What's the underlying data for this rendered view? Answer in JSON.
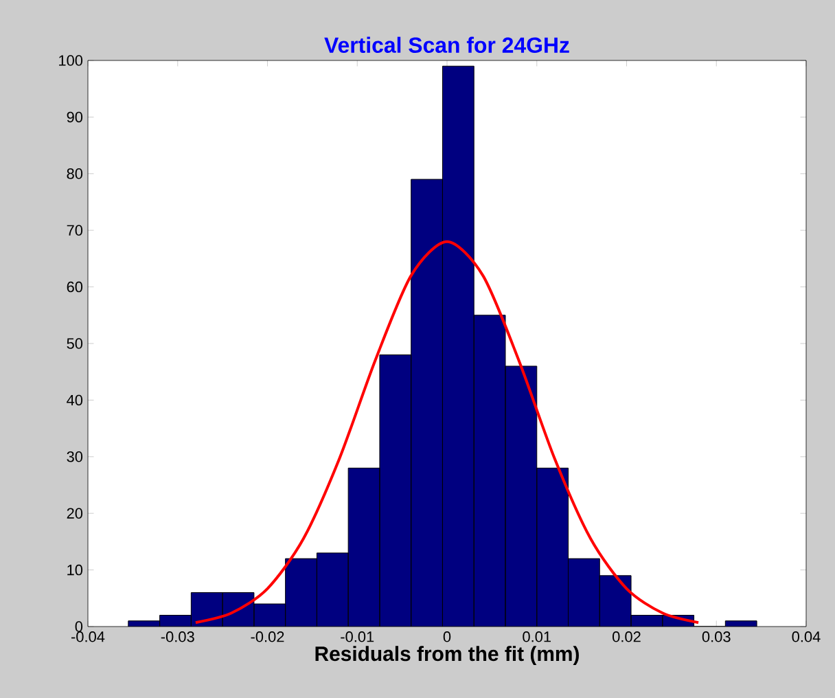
{
  "chart_data": {
    "type": "histogram",
    "title": "Vertical Scan for 24GHz",
    "xlabel": "Residuals from the fit (mm)",
    "bins": [
      -0.0355,
      -0.032,
      -0.0285,
      -0.025,
      -0.0215,
      -0.018,
      -0.0145,
      -0.011,
      -0.0075,
      -0.004,
      -0.0005,
      0.003,
      0.0065,
      0.01,
      0.0135,
      0.017,
      0.0205,
      0.024,
      0.0275,
      0.031,
      0.0345
    ],
    "series": [
      {
        "color": "#000080",
        "values": [
          1,
          2,
          6,
          6,
          4,
          12,
          13,
          28,
          48,
          79,
          99,
          55,
          46,
          28,
          12,
          9,
          2,
          2,
          0,
          1
        ]
      },
      {
        "type": "line",
        "color": "#ff0000",
        "x": [
          -0.028,
          -0.024,
          -0.02,
          -0.016,
          -0.012,
          -0.008,
          -0.004,
          0,
          0.004,
          0.008,
          0.012,
          0.016,
          0.02,
          0.024,
          0.028
        ],
        "values": [
          0.7,
          2.4,
          6.7,
          15.5,
          29.6,
          47,
          62,
          68,
          62,
          47,
          29.6,
          15.5,
          6.7,
          2.4,
          0.7
        ]
      }
    ],
    "xlim": [
      -0.04,
      0.04
    ],
    "ylim": [
      0,
      100
    ],
    "xticks": [
      -0.04,
      -0.03,
      -0.02,
      -0.01,
      0,
      0.01,
      0.02,
      0.03,
      0.04
    ],
    "yticks": [
      0,
      10,
      20,
      30,
      40,
      50,
      60,
      70,
      80,
      90,
      100
    ]
  }
}
